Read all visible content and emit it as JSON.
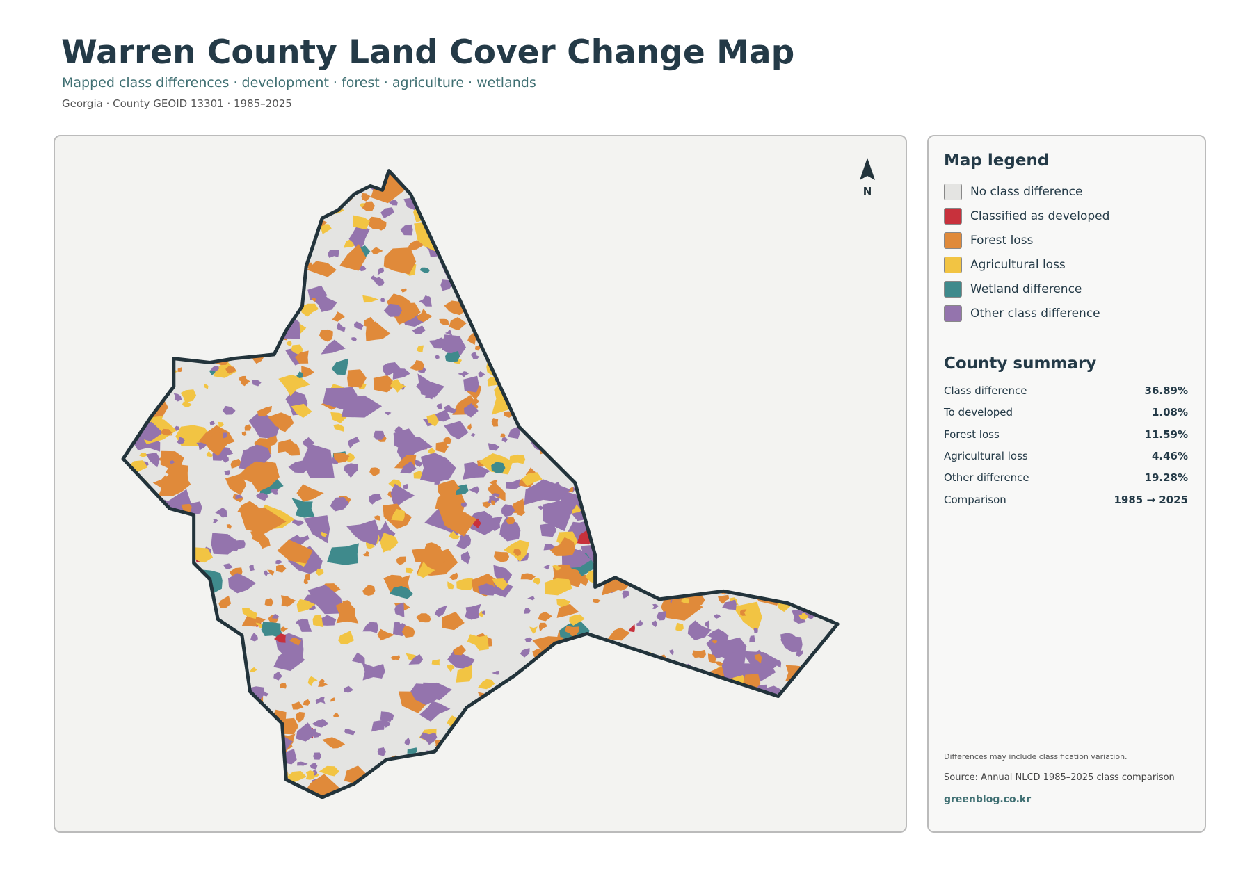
{
  "header": {
    "title": "Warren County Land Cover Change Map",
    "subtitle": "Mapped class differences · development · forest · agriculture · wetlands",
    "meta": "Georgia · County GEOID 13301 · 1985–2025"
  },
  "map": {
    "north_label": "N"
  },
  "legend": {
    "title": "Map legend",
    "items": [
      {
        "label": "No class difference",
        "color": "#e4e4e2"
      },
      {
        "label": "Classified as developed",
        "color": "#c8313c"
      },
      {
        "label": "Forest loss",
        "color": "#e08a3a"
      },
      {
        "label": "Agricultural loss",
        "color": "#f2c443"
      },
      {
        "label": "Wetland difference",
        "color": "#3f8a8c"
      },
      {
        "label": "Other class difference",
        "color": "#9474ad"
      }
    ]
  },
  "summary": {
    "title": "County summary",
    "rows": [
      [
        "Class difference",
        "36.89%"
      ],
      [
        "To developed",
        "1.08%"
      ],
      [
        "Forest loss",
        "11.59%"
      ],
      [
        "Agricultural loss",
        "4.46%"
      ],
      [
        "Other difference",
        "19.28%"
      ],
      [
        "Comparison",
        "1985 → 2025"
      ]
    ]
  },
  "footer": {
    "note": "Differences may include classification variation.",
    "source": "Source: Annual NLCD 1985–2025 class comparison",
    "site": "greenblog.co.kr"
  }
}
